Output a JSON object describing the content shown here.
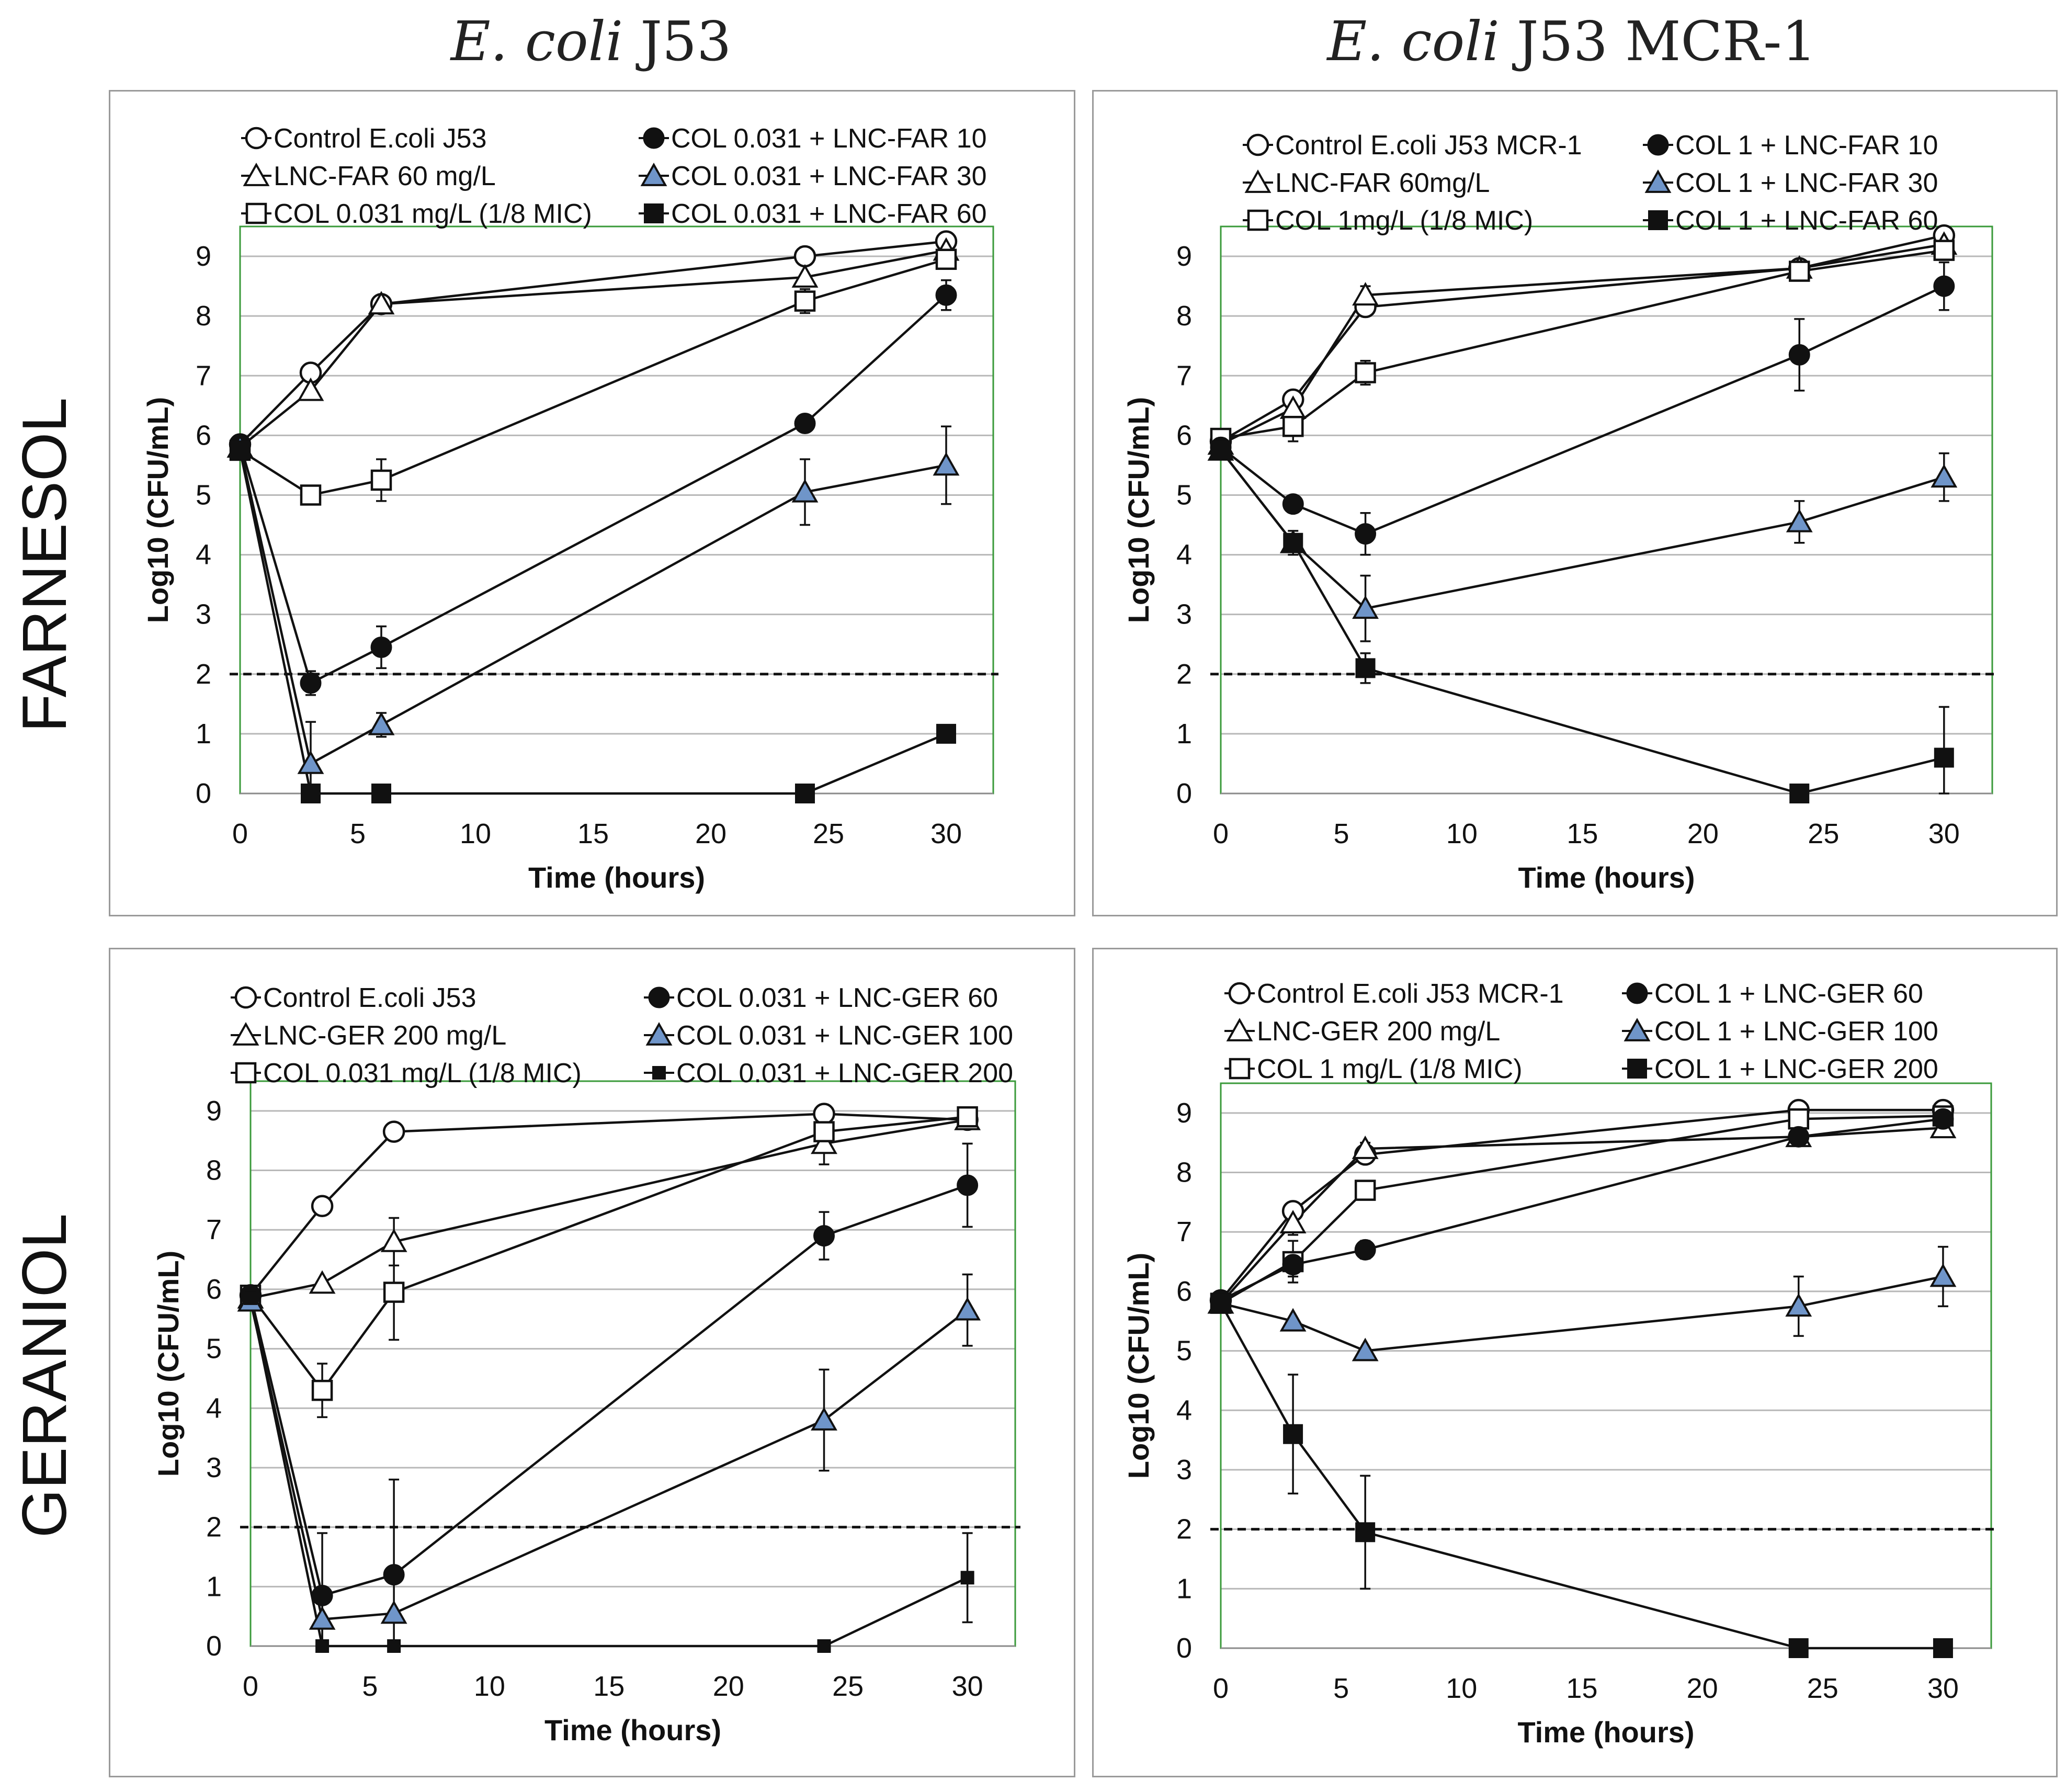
{
  "column_titles": [
    {
      "italic": "E. coli",
      "rest": " J53"
    },
    {
      "italic": "E. coli",
      "rest": " J53 MCR-1"
    }
  ],
  "row_titles": [
    "FARNESOL",
    "GERANIOL"
  ],
  "colors": {
    "blue_fill": "#6f95c9",
    "plot_border": "#3a9a3a",
    "grid": "#b8b8b8"
  },
  "chart_data": [
    {
      "type": "line",
      "panel": "farnesol-j53",
      "xlabel": "Time (hours)",
      "ylabel": "Log10 (CFU/mL)",
      "xlim": [
        0,
        32
      ],
      "ylim": [
        0,
        9.5
      ],
      "xticks": [
        0,
        5,
        10,
        15,
        20,
        25,
        30
      ],
      "yticks": [
        0,
        1,
        2,
        3,
        4,
        5,
        6,
        7,
        8,
        9
      ],
      "threshold": 2,
      "series": [
        {
          "name": "Control E.coli J53",
          "marker": "circle-open",
          "x": [
            0,
            3,
            6,
            24,
            30
          ],
          "y": [
            5.85,
            7.05,
            8.2,
            9.0,
            9.25
          ],
          "err": [
            0,
            0,
            0.05,
            0.15,
            0.1
          ]
        },
        {
          "name": "LNC-FAR 60 mg/L",
          "marker": "triangle-open",
          "x": [
            0,
            3,
            6,
            24,
            30
          ],
          "y": [
            5.8,
            6.75,
            8.2,
            8.65,
            9.1
          ],
          "err": [
            0,
            0,
            0,
            0,
            0
          ]
        },
        {
          "name": "COL 0.031 mg/L (1/8 MIC)",
          "marker": "square-open",
          "x": [
            0,
            3,
            6,
            24,
            30
          ],
          "y": [
            5.75,
            5.0,
            5.25,
            8.25,
            8.95
          ],
          "err": [
            0,
            0,
            0.35,
            0.2,
            0.15
          ]
        },
        {
          "name": "COL 0.031 + LNC-FAR 10",
          "marker": "circle-filled",
          "x": [
            0,
            3,
            6,
            24,
            30
          ],
          "y": [
            5.85,
            1.85,
            2.45,
            6.2,
            8.35
          ],
          "err": [
            0,
            0.2,
            0.35,
            0,
            0.25
          ]
        },
        {
          "name": "COL 0.031 + LNC-FAR 30",
          "marker": "triangle-blue",
          "x": [
            0,
            3,
            6,
            24,
            30
          ],
          "y": [
            5.8,
            0.5,
            1.15,
            5.05,
            5.5
          ],
          "err": [
            0,
            0.7,
            0.2,
            0.55,
            0.65
          ]
        },
        {
          "name": "COL 0.031 + LNC-FAR 60",
          "marker": "square-filled",
          "x": [
            0,
            3,
            6,
            24,
            30
          ],
          "y": [
            5.75,
            0,
            0,
            0,
            1.0
          ],
          "err": [
            0,
            0,
            0,
            0,
            0
          ]
        }
      ]
    },
    {
      "type": "line",
      "panel": "farnesol-mcr1",
      "xlabel": "Time (hours)",
      "ylabel": "Log10 (CFU/mL)",
      "xlim": [
        0,
        32
      ],
      "ylim": [
        0,
        9.5
      ],
      "xticks": [
        0,
        5,
        10,
        15,
        20,
        25,
        30
      ],
      "yticks": [
        0,
        1,
        2,
        3,
        4,
        5,
        6,
        7,
        8,
        9
      ],
      "threshold": 2,
      "series": [
        {
          "name": "Control E.coli J53 MCR-1",
          "marker": "circle-open",
          "x": [
            0,
            3,
            6,
            24,
            30
          ],
          "y": [
            5.9,
            6.6,
            8.15,
            8.8,
            9.35
          ],
          "err": [
            0,
            0.1,
            0.15,
            0.1,
            0.1
          ]
        },
        {
          "name": "LNC-FAR 60mg/L",
          "marker": "triangle-open",
          "x": [
            0,
            3,
            6,
            24,
            30
          ],
          "y": [
            5.85,
            6.45,
            8.35,
            8.8,
            9.2
          ],
          "err": [
            0,
            0.1,
            0.15,
            0,
            0
          ]
        },
        {
          "name": "COL 1mg/L (1/8 MIC)",
          "marker": "square-open",
          "x": [
            0,
            3,
            6,
            24,
            30
          ],
          "y": [
            5.95,
            6.15,
            7.05,
            8.75,
            9.1
          ],
          "err": [
            0,
            0.25,
            0.2,
            0.1,
            0.1
          ]
        },
        {
          "name": "COL 1 + LNC-FAR 10",
          "marker": "circle-filled",
          "x": [
            0,
            3,
            6,
            24,
            30
          ],
          "y": [
            5.8,
            4.85,
            4.35,
            7.35,
            8.5
          ],
          "err": [
            0,
            0,
            0.35,
            0.6,
            0.4
          ]
        },
        {
          "name": "COL 1 + LNC-FAR 30",
          "marker": "triangle-blue",
          "x": [
            0,
            3,
            6,
            24,
            30
          ],
          "y": [
            5.75,
            4.2,
            3.1,
            4.55,
            5.3
          ],
          "err": [
            0,
            0.2,
            0.55,
            0.35,
            0.4
          ]
        },
        {
          "name": "COL 1 + LNC-FAR 60",
          "marker": "square-filled",
          "x": [
            0,
            3,
            6,
            24,
            30
          ],
          "y": [
            5.75,
            4.2,
            2.1,
            0,
            0.6
          ],
          "err": [
            0,
            0,
            0.25,
            0,
            0.85
          ]
        }
      ]
    },
    {
      "type": "line",
      "panel": "geraniol-j53",
      "xlabel": "Time (hours)",
      "ylabel": "Log10 (CFU/mL)",
      "xlim": [
        0,
        32
      ],
      "ylim": [
        0,
        9.5
      ],
      "xticks": [
        0,
        5,
        10,
        15,
        20,
        25,
        30
      ],
      "yticks": [
        0,
        1,
        2,
        3,
        4,
        5,
        6,
        7,
        8,
        9
      ],
      "threshold": 2,
      "series": [
        {
          "name": "Control E.coli J53",
          "marker": "circle-open",
          "x": [
            0,
            3,
            6,
            24,
            30
          ],
          "y": [
            5.9,
            7.4,
            8.65,
            8.95,
            8.85
          ],
          "err": [
            0,
            0,
            0,
            0,
            0
          ]
        },
        {
          "name": "LNC-GER 200 mg/L",
          "marker": "triangle-open",
          "x": [
            0,
            3,
            6,
            24,
            30
          ],
          "y": [
            5.85,
            6.1,
            6.8,
            8.45,
            8.85
          ],
          "err": [
            0,
            0,
            0.4,
            0.35,
            0.1
          ]
        },
        {
          "name": "COL 0.031 mg/L (1/8 MIC)",
          "marker": "square-open",
          "x": [
            0,
            3,
            6,
            24,
            30
          ],
          "y": [
            5.9,
            4.3,
            5.95,
            8.65,
            8.9
          ],
          "err": [
            0,
            0.45,
            0.8,
            0.1,
            0.1
          ]
        },
        {
          "name": "COL 0.031 + LNC-GER 60",
          "marker": "circle-filled",
          "x": [
            0,
            3,
            6,
            24,
            30
          ],
          "y": [
            5.9,
            0.85,
            1.2,
            6.9,
            7.75
          ],
          "err": [
            0,
            1.05,
            1.6,
            0.4,
            0.7
          ]
        },
        {
          "name": "COL 0.031 + LNC-GER 100",
          "marker": "triangle-blue",
          "x": [
            0,
            3,
            6,
            24,
            30
          ],
          "y": [
            5.8,
            0.45,
            0.55,
            3.8,
            5.65
          ],
          "err": [
            0,
            0.5,
            0,
            0.85,
            0.6
          ]
        },
        {
          "name": "COL 0.031 + LNC-GER 200",
          "marker": "square-filled-small",
          "x": [
            0,
            3,
            6,
            24,
            30
          ],
          "y": [
            5.85,
            0,
            0,
            0,
            1.15
          ],
          "err": [
            0,
            0,
            0,
            0,
            0.75
          ]
        }
      ]
    },
    {
      "type": "line",
      "panel": "geraniol-mcr1",
      "xlabel": "Time (hours)",
      "ylabel": "Log10 (CFU/mL)",
      "xlim": [
        0,
        32
      ],
      "ylim": [
        0,
        9.5
      ],
      "xticks": [
        0,
        5,
        10,
        15,
        20,
        25,
        30
      ],
      "yticks": [
        0,
        1,
        2,
        3,
        4,
        5,
        6,
        7,
        8,
        9
      ],
      "threshold": 2,
      "series": [
        {
          "name": "Control E.coli J53 MCR-1",
          "marker": "circle-open",
          "x": [
            0,
            3,
            6,
            24,
            30
          ],
          "y": [
            5.85,
            7.35,
            8.3,
            9.05,
            9.05
          ],
          "err": [
            0,
            0,
            0,
            0,
            0
          ]
        },
        {
          "name": "LNC-GER 200 mg/L",
          "marker": "triangle-open",
          "x": [
            0,
            3,
            6,
            24,
            30
          ],
          "y": [
            5.8,
            7.15,
            8.4,
            8.6,
            8.75
          ],
          "err": [
            0,
            0.2,
            0.1,
            0.1,
            0.05
          ]
        },
        {
          "name": "COL 1 mg/L (1/8 MIC)",
          "marker": "square-open",
          "x": [
            0,
            3,
            6,
            24,
            30
          ],
          "y": [
            5.8,
            6.5,
            7.7,
            8.9,
            8.95
          ],
          "err": [
            0,
            0.35,
            0.1,
            0.05,
            0.05
          ]
        },
        {
          "name": "COL 1 + LNC-GER 60",
          "marker": "circle-filled",
          "x": [
            0,
            3,
            6,
            24,
            30
          ],
          "y": [
            5.85,
            6.45,
            6.7,
            8.6,
            8.9
          ],
          "err": [
            0,
            0.2,
            0.15,
            0,
            0
          ]
        },
        {
          "name": "COL 1 + LNC-GER 100",
          "marker": "triangle-blue",
          "x": [
            0,
            3,
            6,
            24,
            30
          ],
          "y": [
            5.8,
            5.5,
            5.0,
            5.75,
            6.25
          ],
          "err": [
            0,
            0,
            0,
            0.5,
            0.5
          ]
        },
        {
          "name": "COL 1 + LNC-GER 200",
          "marker": "square-filled",
          "x": [
            0,
            3,
            6,
            24,
            30
          ],
          "y": [
            5.8,
            3.6,
            1.95,
            0,
            0
          ],
          "err": [
            0,
            1.0,
            0.95,
            0,
            0
          ]
        }
      ]
    }
  ]
}
